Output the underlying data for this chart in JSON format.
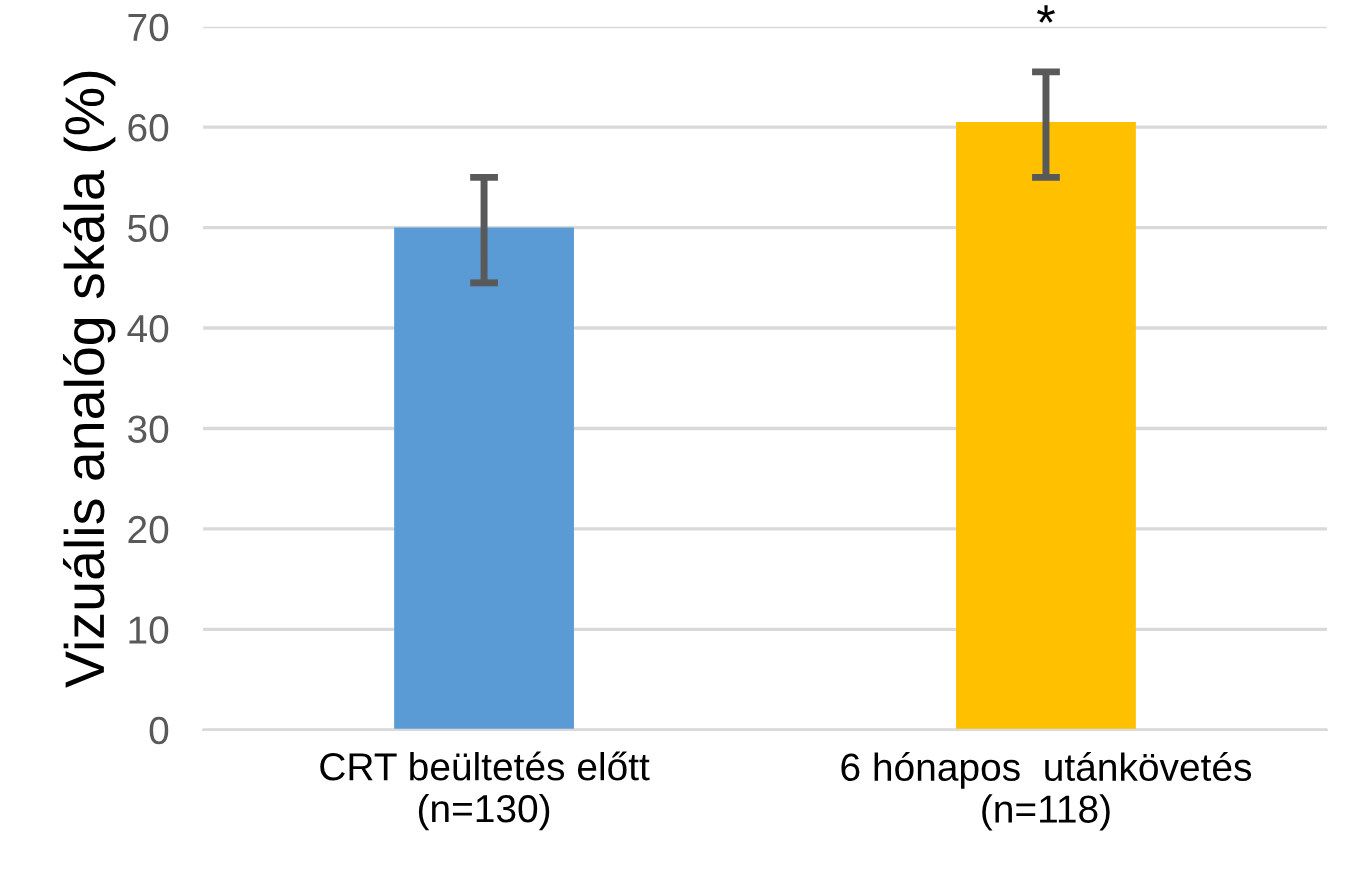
{
  "chart_data": {
    "type": "bar",
    "ylabel": "Vizuális analóg skála (%)",
    "categories": [
      "CRT beültetés előtt\n(n=130)",
      "6 hónapos  utánkövetés\n(n=118)"
    ],
    "values": [
      50,
      60.5
    ],
    "colors": [
      "#5b9bd5",
      "#ffc000"
    ],
    "errors": [
      [
        44.5,
        55
      ],
      [
        55,
        65.5
      ]
    ],
    "annotations": [
      "*"
    ],
    "ylim": [
      0,
      70
    ],
    "yticks": [
      0,
      10,
      20,
      30,
      40,
      50,
      60,
      70
    ],
    "grid": "y"
  }
}
